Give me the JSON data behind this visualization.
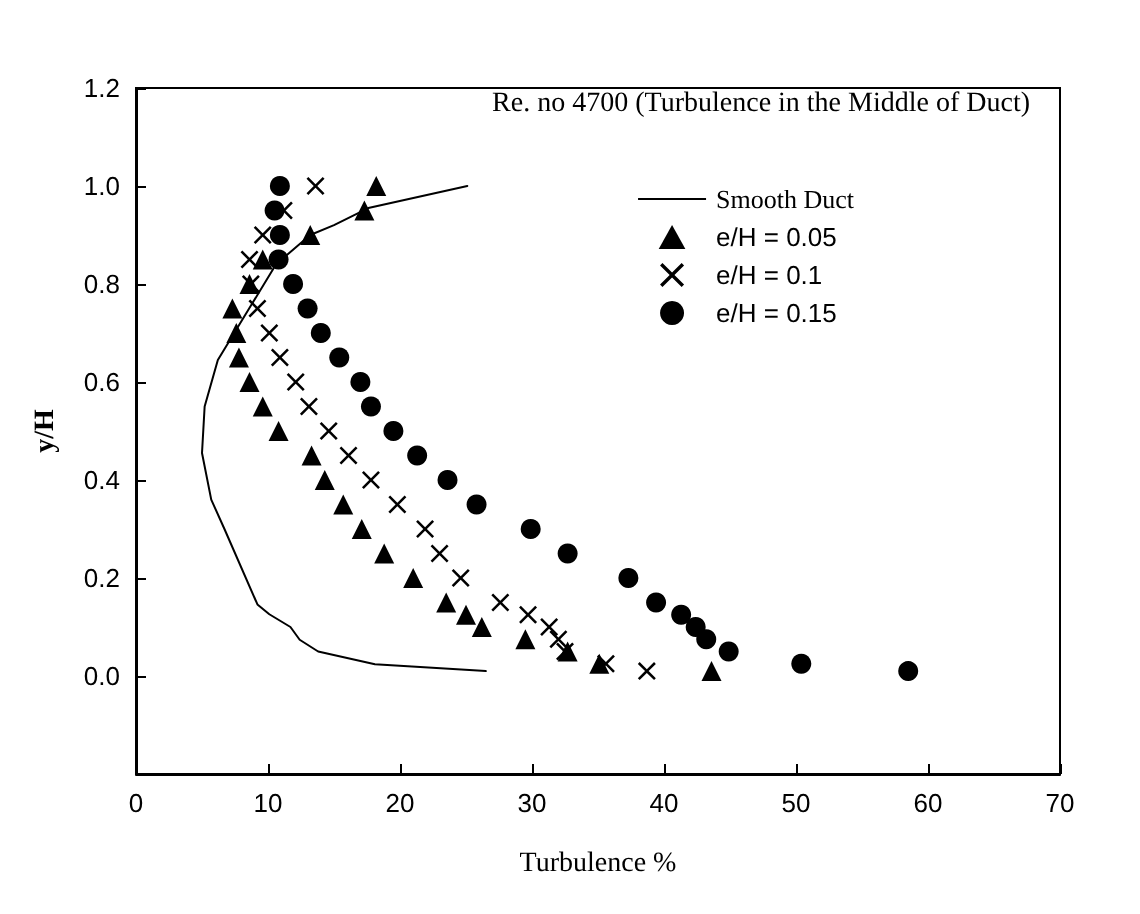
{
  "chart_data": {
    "type": "scatter",
    "title": "Re. no 4700 (Turbulence in the Middle of Duct)",
    "xlabel": "Turbulence %",
    "ylabel": "y/H",
    "xlim": [
      0,
      70
    ],
    "xticks": [
      0,
      10,
      20,
      30,
      40,
      50,
      60,
      70
    ],
    "ylim": [
      -0.2,
      1.2
    ],
    "yticks": [
      {
        "value": -0.2,
        "label": null
      },
      {
        "value": 0,
        "label": "0.0"
      },
      {
        "value": 0.2,
        "label": "0.2"
      },
      {
        "value": 0.4,
        "label": "0.4"
      },
      {
        "value": 0.6,
        "label": "0.6"
      },
      {
        "value": 0.8,
        "label": "0.8"
      },
      {
        "value": 1.0,
        "label": "1.0"
      },
      {
        "value": 1.2,
        "label": "1.2"
      }
    ],
    "grid": false,
    "legend": "top right",
    "series": [
      {
        "name": "Smooth Duct",
        "type": "line",
        "color": "#000000",
        "marker": "none",
        "line_style": "solid",
        "x": [
          25.1,
          17.6,
          15.0,
          13.2,
          10.6,
          8.8,
          6.2,
          5.2,
          5.0,
          5.7,
          6.7,
          9.2,
          10.1,
          11.7,
          12.4,
          13.8,
          18.1,
          26.5
        ],
        "values": [
          1.0,
          0.955,
          0.92,
          0.9,
          0.84,
          0.76,
          0.645,
          0.55,
          0.455,
          0.36,
          0.3,
          0.146,
          0.126,
          0.1,
          0.074,
          0.05,
          0.024,
          0.01
        ]
      },
      {
        "name": "e/H = 0.05",
        "color": "#000000",
        "marker": "triangle",
        "x": [
          18.2,
          17.3,
          13.2,
          9.6,
          8.6,
          7.3,
          7.6,
          7.8,
          8.6,
          9.6,
          10.8,
          13.3,
          14.3,
          15.7,
          17.1,
          18.8,
          21.0,
          23.5,
          25.0,
          26.2,
          29.5,
          32.7,
          35.1,
          43.6
        ],
        "values": [
          1.0,
          0.95,
          0.9,
          0.85,
          0.8,
          0.75,
          0.7,
          0.65,
          0.6,
          0.55,
          0.5,
          0.45,
          0.4,
          0.35,
          0.3,
          0.25,
          0.2,
          0.15,
          0.125,
          0.1,
          0.075,
          0.05,
          0.025,
          0.01
        ]
      },
      {
        "name": "e/H = 0.1",
        "color": "#000000",
        "marker": "cross",
        "x": [
          13.6,
          11.2,
          9.6,
          8.6,
          8.7,
          9.2,
          10.1,
          10.9,
          12.1,
          13.1,
          14.6,
          16.1,
          17.8,
          19.8,
          21.9,
          23.0,
          24.6,
          27.6,
          29.7,
          31.3,
          32.0,
          32.5,
          35.6,
          38.7
        ],
        "values": [
          1.0,
          0.95,
          0.9,
          0.85,
          0.8,
          0.75,
          0.7,
          0.65,
          0.6,
          0.55,
          0.5,
          0.45,
          0.4,
          0.35,
          0.3,
          0.25,
          0.2,
          0.15,
          0.125,
          0.1,
          0.075,
          0.05,
          0.025,
          0.01
        ]
      },
      {
        "name": "e/H = 0.15",
        "color": "#000000",
        "marker": "circle",
        "x": [
          10.9,
          10.5,
          10.9,
          10.8,
          11.9,
          13.0,
          14.0,
          15.4,
          17.0,
          17.8,
          19.5,
          21.3,
          23.6,
          25.8,
          29.9,
          32.7,
          37.3,
          39.4,
          41.3,
          42.4,
          43.2,
          44.9,
          50.4,
          58.5
        ],
        "values": [
          1.0,
          0.95,
          0.9,
          0.85,
          0.8,
          0.75,
          0.7,
          0.65,
          0.6,
          0.55,
          0.5,
          0.45,
          0.4,
          0.35,
          0.3,
          0.25,
          0.2,
          0.15,
          0.125,
          0.1,
          0.075,
          0.05,
          0.025,
          0.01
        ]
      }
    ]
  }
}
